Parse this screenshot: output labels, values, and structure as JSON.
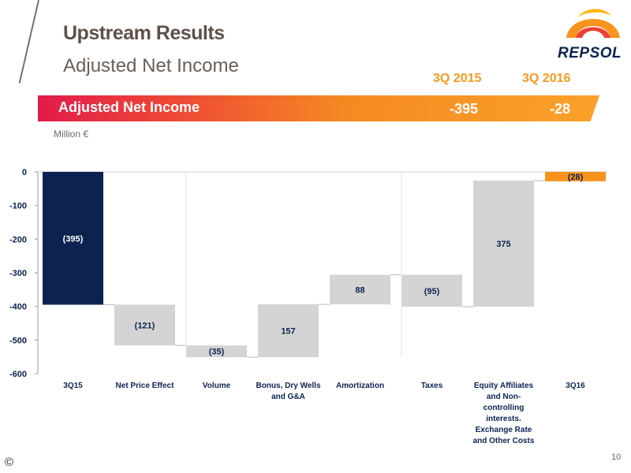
{
  "slide": {
    "title": "Upstream Results",
    "subtitle": "Adjusted Net Income",
    "logo_text": "REPSOL",
    "page_number": "10",
    "copyright": "©"
  },
  "banner": {
    "label": "Adjusted Net Income",
    "columns": [
      "3Q 2015",
      "3Q 2016"
    ],
    "values": [
      "-395",
      "-28"
    ]
  },
  "colors": {
    "accent_orange": "#f49a1c",
    "navy": "#0c2350",
    "gray_bar": "#d4d4d4",
    "final_bar": "#f7941d",
    "banner_start": "#e21b4a",
    "banner_end": "#fba12a"
  },
  "chart_data": {
    "type": "bar",
    "subtype": "waterfall",
    "unit_label": "Million €",
    "ylim": [
      -600,
      0
    ],
    "yticks": [
      0,
      -100,
      -200,
      -300,
      -400,
      -500,
      -600
    ],
    "categories": [
      "3Q15",
      "Net Price Effect",
      "Volume",
      "Bonus, Dry Wells and G&A",
      "Amortization",
      "Taxes",
      "Equity Affiliates and Non-controlling interests. Exchange Rate and Other Costs",
      "3Q16"
    ],
    "category_lines": [
      [
        "3Q15"
      ],
      [
        "Net Price Effect"
      ],
      [
        "Volume"
      ],
      [
        "Bonus, Dry Wells",
        "and G&A"
      ],
      [
        "Amortization"
      ],
      [
        "Taxes"
      ],
      [
        "Equity Affiliates",
        "and  Non-",
        "controlling",
        "interests.",
        "Exchange Rate",
        "and Other Costs"
      ],
      [
        "3Q16"
      ]
    ],
    "bars": [
      {
        "category": "3Q15",
        "start": 0,
        "end": -395,
        "label": "(395)",
        "kind": "total"
      },
      {
        "category": "Net Price Effect",
        "start": -395,
        "end": -516,
        "label": "(121)",
        "kind": "delta"
      },
      {
        "category": "Volume",
        "start": -516,
        "end": -551,
        "label": "(35)",
        "kind": "delta"
      },
      {
        "category": "Bonus, Dry Wells and G&A",
        "start": -551,
        "end": -394,
        "label": "157",
        "kind": "delta"
      },
      {
        "category": "Amortization",
        "start": -394,
        "end": -306,
        "label": "88",
        "kind": "delta"
      },
      {
        "category": "Taxes",
        "start": -306,
        "end": -401,
        "label": "(95)",
        "kind": "delta"
      },
      {
        "category": "Equity Affiliates and Non-controlling interests. Exchange Rate and Other Costs",
        "start": -401,
        "end": -26,
        "label": "375",
        "kind": "delta"
      },
      {
        "category": "3Q16",
        "start": 0,
        "end": -28,
        "label": "(28)",
        "kind": "final"
      }
    ]
  }
}
